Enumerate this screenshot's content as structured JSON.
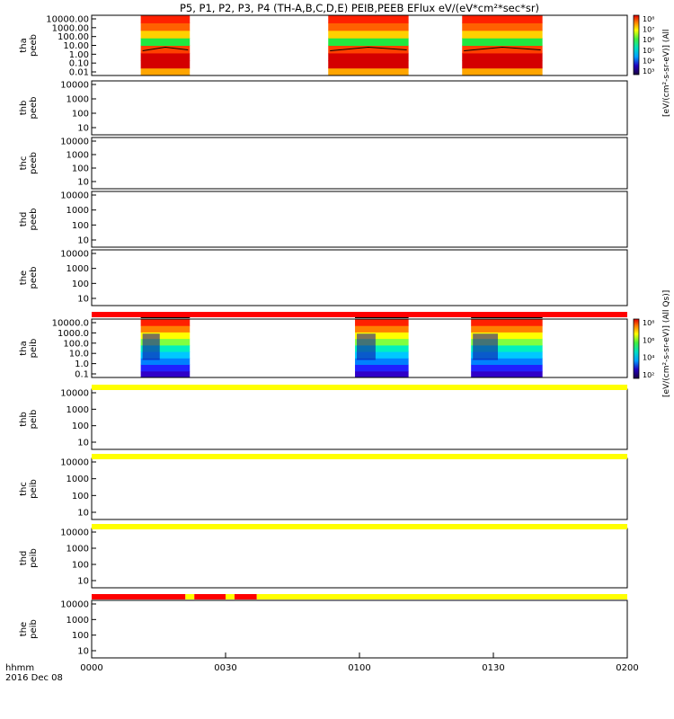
{
  "title": "P5, P1, P2, P3, P4 (TH-A,B,C,D,E) PEIB,PEEB EFlux eV/(eV*cm²*sec*sr)",
  "colorbar_top": {
    "label": "[eV/(cm²-s-sr-eV)] (All",
    "ticks": [
      "10⁸",
      "10⁷",
      "10⁶",
      "10⁵",
      "10⁴",
      "10³"
    ]
  },
  "colorbar_ion": {
    "label": "[eV/(cm²-s-sr-eV)] (All Qs)]",
    "ticks": [
      "10⁸",
      "10⁶",
      "10⁴",
      "10²"
    ]
  },
  "footer": {
    "hhmm": "hhmm",
    "date": "2016 Dec 08"
  },
  "chart_data": {
    "type": "heatmap",
    "x_axis": {
      "ticks": [
        "0000",
        "0030",
        "0100",
        "0130",
        "0200"
      ],
      "range_minutes": [
        0,
        120
      ]
    },
    "panels": [
      {
        "probe": "tha",
        "product": "peeb",
        "y_ticks": [
          "10000.00",
          "1000.00",
          "100.00",
          "10.00",
          "1.00",
          "0.10",
          "0.01"
        ],
        "intervals_min": [
          [
            11,
            22
          ],
          [
            53,
            71
          ],
          [
            83,
            101
          ]
        ],
        "has_data": true
      },
      {
        "probe": "thb",
        "product": "peeb",
        "y_ticks": [
          "10000",
          "1000",
          "100",
          "10"
        ],
        "has_data": false
      },
      {
        "probe": "thc",
        "product": "peeb",
        "y_ticks": [
          "10000",
          "1000",
          "100",
          "10"
        ],
        "has_data": false
      },
      {
        "probe": "thd",
        "product": "peeb",
        "y_ticks": [
          "10000",
          "1000",
          "100",
          "10"
        ],
        "has_data": false
      },
      {
        "probe": "the",
        "product": "peeb",
        "y_ticks": [
          "10000",
          "1000",
          "100",
          "10"
        ],
        "has_data": false
      },
      {
        "probe": "tha",
        "product": "peib",
        "y_ticks": [
          "10000.0",
          "1000.0",
          "100.0",
          "10.0",
          "1.0",
          "0.1"
        ],
        "intervals_min": [
          [
            11,
            22
          ],
          [
            59,
            71
          ],
          [
            85,
            101
          ]
        ],
        "has_data": true
      },
      {
        "probe": "thb",
        "product": "peib",
        "y_ticks": [
          "10000",
          "1000",
          "100",
          "10"
        ],
        "has_data": false
      },
      {
        "probe": "thc",
        "product": "peib",
        "y_ticks": [
          "10000",
          "1000",
          "100",
          "10"
        ],
        "has_data": false
      },
      {
        "probe": "thd",
        "product": "peib",
        "y_ticks": [
          "10000",
          "1000",
          "100",
          "10"
        ],
        "has_data": false
      },
      {
        "probe": "the",
        "product": "peib",
        "y_ticks": [
          "10000",
          "1000",
          "100",
          "10"
        ],
        "has_data": false
      }
    ],
    "status_bars": [
      {
        "after_panel": 5,
        "segments": [
          {
            "from": 0,
            "to": 120,
            "color": "#ff0000"
          }
        ]
      },
      {
        "after_panel": 6,
        "segments": [
          {
            "from": 0,
            "to": 120,
            "color": "#ffff00"
          }
        ]
      },
      {
        "after_panel": 7,
        "segments": [
          {
            "from": 0,
            "to": 120,
            "color": "#ffff00"
          }
        ]
      },
      {
        "after_panel": 8,
        "segments": [
          {
            "from": 0,
            "to": 120,
            "color": "#ffff00"
          }
        ]
      },
      {
        "after_panel": 9,
        "segments": [
          {
            "from": 0,
            "to": 21,
            "color": "#ff0000"
          },
          {
            "from": 21,
            "to": 23,
            "color": "#ffff00"
          },
          {
            "from": 23,
            "to": 30,
            "color": "#ff0000"
          },
          {
            "from": 30,
            "to": 32,
            "color": "#ffff00"
          },
          {
            "from": 32,
            "to": 37,
            "color": "#ff0000"
          },
          {
            "from": 37,
            "to": 120,
            "color": "#ffff00"
          }
        ]
      }
    ]
  }
}
